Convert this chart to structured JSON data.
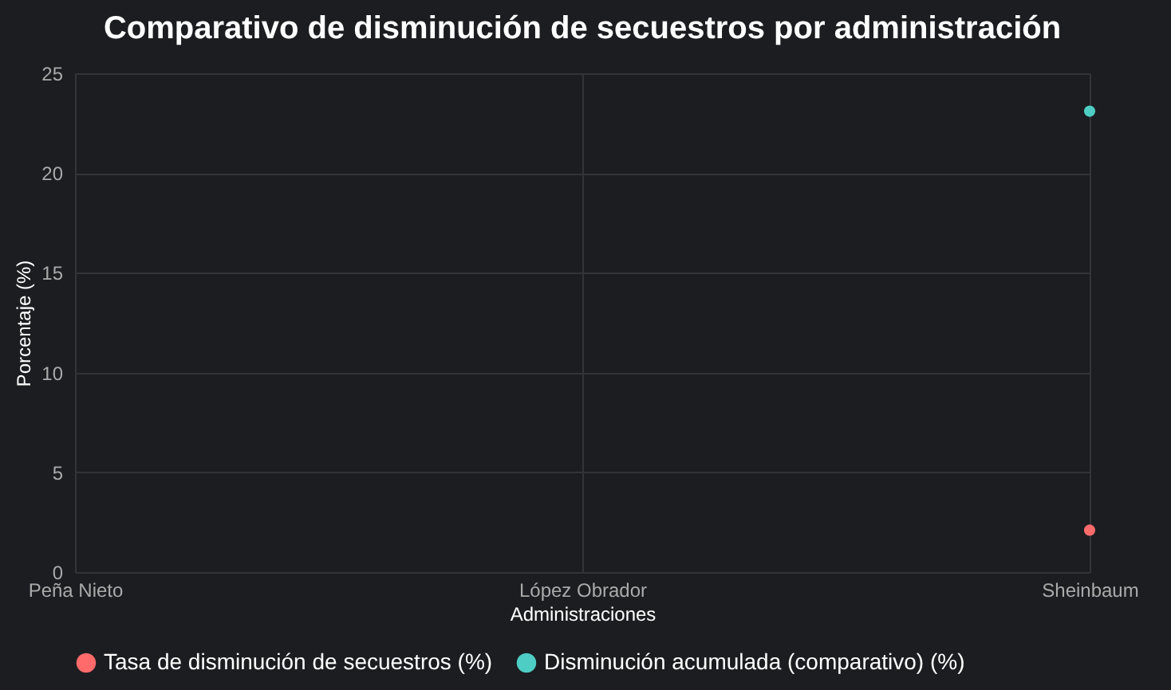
{
  "chart_data": {
    "type": "scatter",
    "title": "Comparativo de disminución de secuestros por administración",
    "xlabel": "Administraciones",
    "ylabel": "Porcentaje (%)",
    "categories": [
      "Peña Nieto",
      "López Obrador",
      "Sheinbaum"
    ],
    "series": [
      {
        "name": "Tasa de disminución de secuestros (%)",
        "color": "#ff6b6b",
        "values": [
          null,
          null,
          2.1
        ]
      },
      {
        "name": "Disminución acumulada (comparativo) (%)",
        "color": "#4ecdc4",
        "values": [
          null,
          null,
          23.1
        ]
      }
    ],
    "ylim": [
      0,
      25
    ],
    "yticks": [
      0,
      5,
      10,
      15,
      20,
      25
    ],
    "grid": true,
    "legend": "bottom",
    "marker": "circle"
  }
}
